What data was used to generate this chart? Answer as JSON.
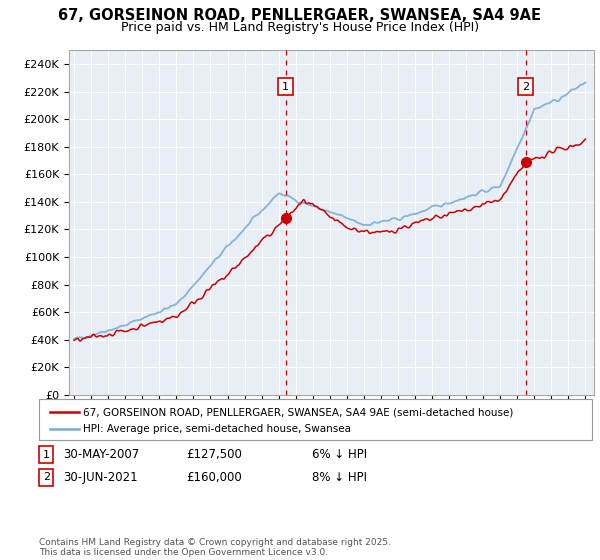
{
  "title": "67, GORSEINON ROAD, PENLLERGAER, SWANSEA, SA4 9AE",
  "subtitle": "Price paid vs. HM Land Registry's House Price Index (HPI)",
  "ylabel_ticks": [
    0,
    20000,
    40000,
    60000,
    80000,
    100000,
    120000,
    140000,
    160000,
    180000,
    200000,
    220000,
    240000
  ],
  "ylim": [
    0,
    250000
  ],
  "year_start": 1995,
  "year_end": 2025,
  "hpi_color": "#7aadd4",
  "price_color": "#cc0000",
  "bg_color": "#e8eef5",
  "grid_color": "#ffffff",
  "marker1_year": 2007.42,
  "marker1_price": 127500,
  "marker1_label": "1",
  "marker2_year": 2021.5,
  "marker2_price": 160000,
  "marker2_label": "2",
  "legend_line1": "67, GORSEINON ROAD, PENLLERGAER, SWANSEA, SA4 9AE (semi-detached house)",
  "legend_line2": "HPI: Average price, semi-detached house, Swansea",
  "footer": "Contains HM Land Registry data © Crown copyright and database right 2025.\nThis data is licensed under the Open Government Licence v3.0.",
  "title_fontsize": 10.5,
  "subtitle_fontsize": 9
}
